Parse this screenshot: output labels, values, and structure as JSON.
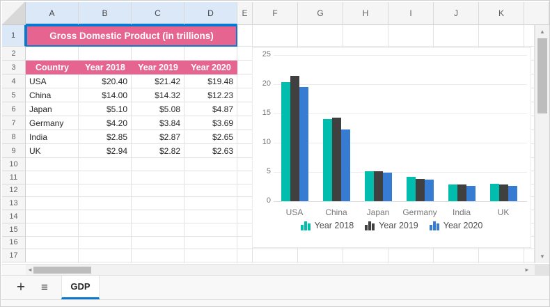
{
  "spreadsheet": {
    "column_headers": [
      "A",
      "B",
      "C",
      "D",
      "E",
      "F",
      "G",
      "H",
      "I",
      "J",
      "K"
    ],
    "row_headers": [
      "1",
      "2",
      "3",
      "4",
      "5",
      "6",
      "7",
      "8",
      "9",
      "10",
      "11",
      "12",
      "13",
      "14",
      "15",
      "16",
      "17"
    ],
    "selection": {
      "selected_columns": [
        "A",
        "B",
        "C",
        "D"
      ],
      "selected_rows": [
        "1"
      ]
    },
    "title_cell": "Gross Domestic Product (in trillions)",
    "table": {
      "headers": [
        "Country",
        "Year 2018",
        "Year 2019",
        "Year 2020"
      ],
      "rows": [
        [
          "USA",
          "$20.40",
          "$21.42",
          "$19.48"
        ],
        [
          "China",
          "$14.00",
          "$14.32",
          "$12.23"
        ],
        [
          "Japan",
          "$5.10",
          "$5.08",
          "$4.87"
        ],
        [
          "Germany",
          "$4.20",
          "$3.84",
          "$3.69"
        ],
        [
          "India",
          "$2.85",
          "$2.87",
          "$2.65"
        ],
        [
          "UK",
          "$2.94",
          "$2.82",
          "$2.63"
        ]
      ]
    }
  },
  "chart_data": {
    "type": "bar",
    "title": "",
    "categories": [
      "USA",
      "China",
      "Japan",
      "Germany",
      "India",
      "UK"
    ],
    "series": [
      {
        "name": "Year 2018",
        "color": "#00bdae",
        "values": [
          20.4,
          14.0,
          5.1,
          4.2,
          2.85,
          2.94
        ]
      },
      {
        "name": "Year 2019",
        "color": "#404041",
        "values": [
          21.42,
          14.32,
          5.08,
          3.84,
          2.87,
          2.82
        ]
      },
      {
        "name": "Year 2020",
        "color": "#357cd2",
        "values": [
          19.48,
          12.23,
          4.87,
          3.69,
          2.65,
          2.63
        ]
      }
    ],
    "ylim": [
      0,
      25
    ],
    "yticks": [
      0,
      5,
      10,
      15,
      20,
      25
    ],
    "grid": true,
    "legend_position": "bottom"
  },
  "sheet_bar": {
    "tabs": [
      {
        "label": "GDP",
        "active": true
      }
    ]
  },
  "icons": {
    "add_sheet": "+",
    "sheet_menu": "≡",
    "scroll_up": "▲",
    "scroll_down": "▼",
    "scroll_left": "◄",
    "scroll_right": "►"
  },
  "colors": {
    "accent_blue": "#0a78d1",
    "header_pink": "#e56590",
    "series_palette": [
      "#00bdae",
      "#404041",
      "#357cd2"
    ]
  }
}
